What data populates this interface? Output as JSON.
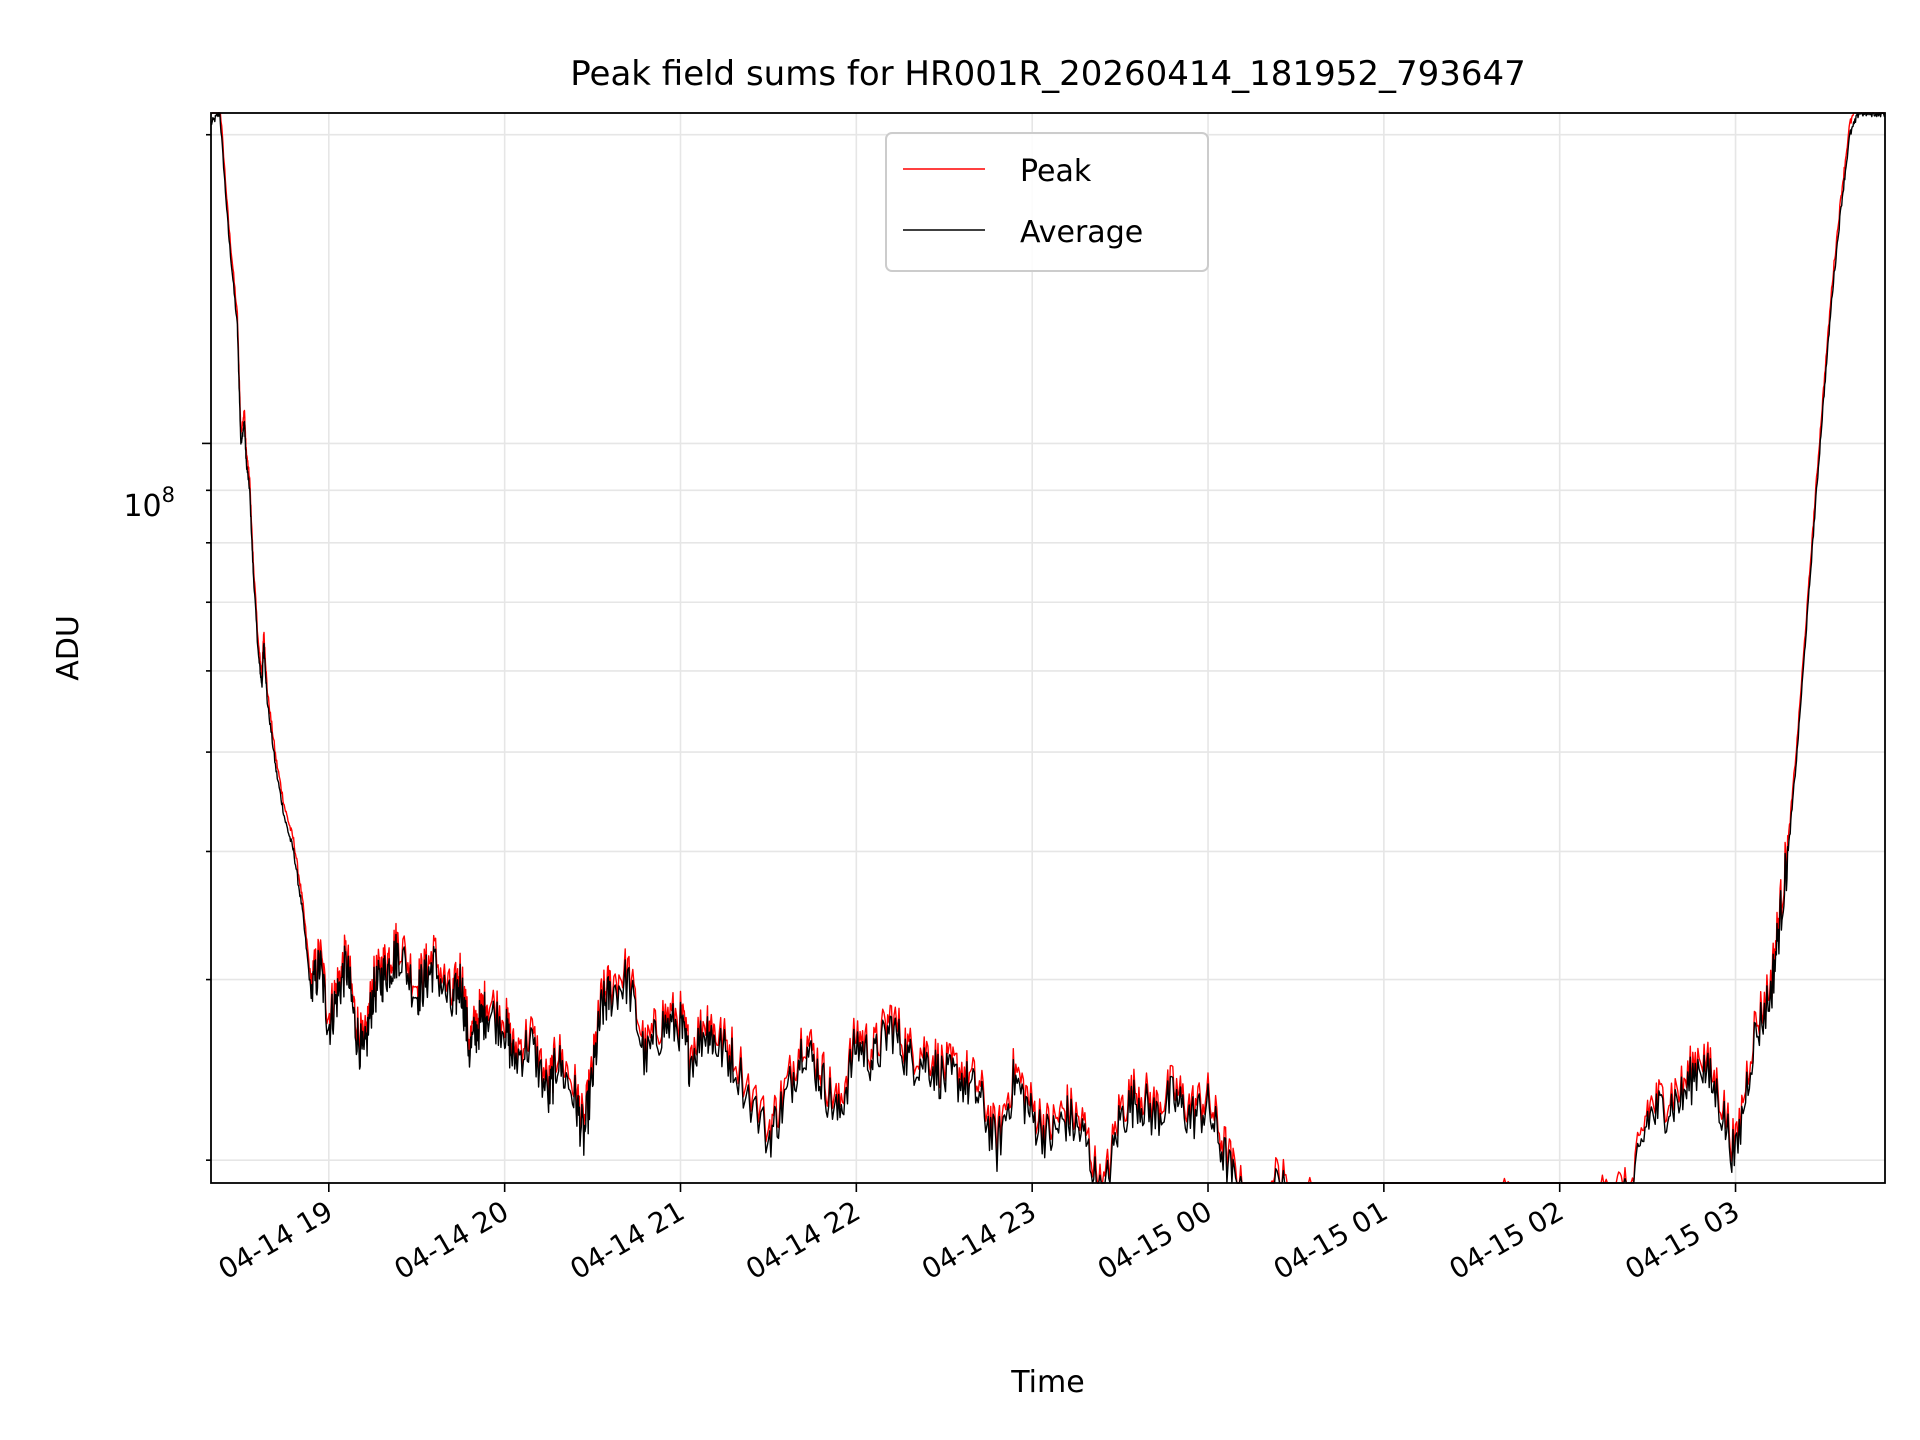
{
  "chart_data": {
    "type": "line",
    "title": "Peak field sums for HR001R_20260414_181952_793647",
    "xlabel": "Time",
    "ylabel": "ADU",
    "yscale": "log",
    "ylim": [
      19000000,
      210000000
    ],
    "xlim_hours": [
      18.33,
      27.85
    ],
    "major_ytick": {
      "value": 100000000,
      "base": "10",
      "exponent": "8"
    },
    "minor_yticks": [
      20000000,
      30000000,
      40000000,
      50000000,
      60000000,
      70000000,
      80000000,
      90000000,
      200000000
    ],
    "grid": true,
    "legend_position": "upper center",
    "x_ticks": [
      {
        "hour": 19,
        "label": "04-14 19"
      },
      {
        "hour": 20,
        "label": "04-14 20"
      },
      {
        "hour": 21,
        "label": "04-14 21"
      },
      {
        "hour": 22,
        "label": "04-14 22"
      },
      {
        "hour": 23,
        "label": "04-14 23"
      },
      {
        "hour": 24,
        "label": "04-15 00"
      },
      {
        "hour": 25,
        "label": "04-15 01"
      },
      {
        "hour": 26,
        "label": "04-15 02"
      },
      {
        "hour": 27,
        "label": "04-15 03"
      }
    ],
    "series": [
      {
        "name": "Peak",
        "color": "#ff0000",
        "ratio_to_average": 1.025
      },
      {
        "name": "Average",
        "color": "#000000",
        "ratio_to_average": 1.0
      }
    ],
    "x": [
      18.33,
      18.38,
      18.43,
      18.48,
      18.5,
      18.52,
      18.53,
      18.55,
      18.57,
      18.6,
      18.62,
      18.63,
      18.65,
      18.7,
      18.75,
      18.8,
      18.85,
      18.9,
      18.95,
      19.0,
      19.05,
      19.1,
      19.15,
      19.2,
      19.25,
      19.3,
      19.35,
      19.4,
      19.5,
      19.55,
      19.6,
      19.7,
      19.75,
      19.8,
      19.85,
      19.9,
      20.0,
      20.05,
      20.15,
      20.25,
      20.3,
      20.4,
      20.45,
      20.5,
      20.55,
      20.6,
      20.7,
      20.8,
      20.9,
      21.0,
      21.05,
      21.15,
      21.2,
      21.3,
      21.5,
      21.6,
      21.7,
      21.8,
      21.9,
      22.0,
      22.1,
      22.2,
      22.3,
      22.4,
      22.5,
      22.6,
      22.7,
      22.8,
      22.9,
      23.0,
      23.1,
      23.2,
      23.3,
      23.4,
      23.5,
      23.6,
      23.7,
      23.8,
      23.9,
      24.0,
      24.1,
      24.2,
      24.3,
      24.4,
      24.5,
      24.6,
      24.7,
      24.8,
      24.9,
      25.0,
      25.1,
      25.2,
      25.3,
      25.4,
      25.5,
      25.6,
      25.7,
      25.8,
      25.9,
      26.0,
      26.1,
      26.2,
      26.3,
      26.4,
      26.5,
      26.6,
      26.7,
      26.8,
      26.9,
      27.0,
      27.1,
      27.2,
      27.25,
      27.3,
      27.35,
      27.4,
      27.45,
      27.5,
      27.55,
      27.6,
      27.65,
      27.7,
      27.75,
      27.8,
      27.85
    ],
    "average_values": [
      205000000,
      210000000,
      160000000,
      130000000,
      100000000,
      105000000,
      96000000,
      90000000,
      75000000,
      62000000,
      58000000,
      64000000,
      56000000,
      48000000,
      43000000,
      40000000,
      35000000,
      29000000,
      31000000,
      27000000,
      29000000,
      31000000,
      27000000,
      25000000,
      29000000,
      30000000,
      31000000,
      32000000,
      29000000,
      30000000,
      31000000,
      28000000,
      30000000,
      25500000,
      27000000,
      28000000,
      27000000,
      25000000,
      26000000,
      23000000,
      25000000,
      23000000,
      21000000,
      24000000,
      28000000,
      29000000,
      30000000,
      25000000,
      27000000,
      27000000,
      25000000,
      27000000,
      26000000,
      25000000,
      21000000,
      23000000,
      26000000,
      24000000,
      22000000,
      26000000,
      25000000,
      27000000,
      25000000,
      25000000,
      24000000,
      24000000,
      23000000,
      20500000,
      24000000,
      22000000,
      21000000,
      22000000,
      21000000,
      18000000,
      22000000,
      23000000,
      22000000,
      23000000,
      22000000,
      22500000,
      20000000,
      18000000,
      17000000,
      19000000,
      17500000,
      18000000,
      17000000,
      16000000,
      16500000,
      16000000,
      15500000,
      15800000,
      15000000,
      16500000,
      14500000,
      16000000,
      18000000,
      16500000,
      17000000,
      18000000,
      16500000,
      17500000,
      18500000,
      18000000,
      22000000,
      22500000,
      23000000,
      25000000,
      23000000,
      20000000,
      26000000,
      29000000,
      34000000,
      40000000,
      50000000,
      65000000,
      85000000,
      110000000,
      140000000,
      170000000,
      200000000,
      210000000,
      210000000,
      210000000,
      210000000
    ]
  }
}
